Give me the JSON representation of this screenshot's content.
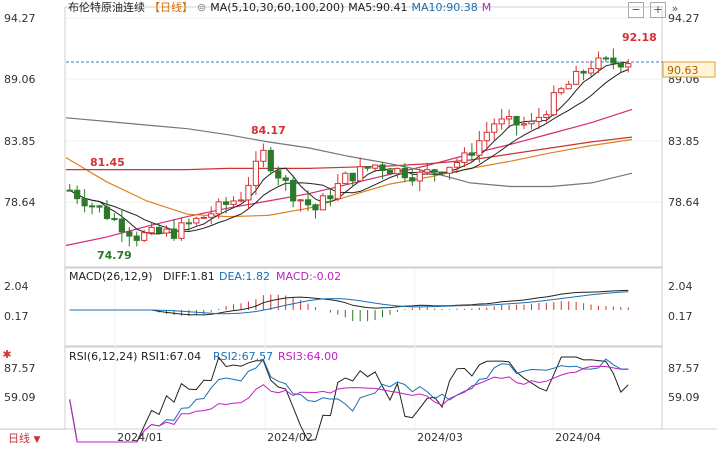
{
  "header": {
    "title": "布伦特原油连续",
    "period": "【日线】",
    "ma_label": "MA(5,10,30,60,100,200)",
    "ma5": "MA5:90.41",
    "ma10": "MA10:90.38",
    "ma_more": "M"
  },
  "price_axis": {
    "labels": [
      "94.27",
      "89.06",
      "83.85",
      "78.64"
    ]
  },
  "macd_axis": {
    "labels": [
      "2.04",
      "0.17"
    ]
  },
  "rsi_axis": {
    "labels": [
      "87.57",
      "59.09"
    ]
  },
  "current_price": "90.63",
  "annotations": {
    "high_1": "92.18",
    "high_2": "84.17",
    "low": "74.79",
    "level": "81.45"
  },
  "macd": {
    "label": "MACD(26,12,9)",
    "diff": "DIFF:1.81",
    "dea": "DEA:1.82",
    "macd": "MACD:-0.02"
  },
  "rsi": {
    "label": "RSI(6,12,24)",
    "rsi1": "RSI1:67.04",
    "rsi2": "RSI2:67.57",
    "rsi3": "RSI3:64.00"
  },
  "x_labels": [
    "2024/01",
    "2024/02",
    "2024/03",
    "2024/04"
  ],
  "tab_label": "日线",
  "colors": {
    "up": "#d83030",
    "down": "#2a7a2a",
    "ma5": "#222222",
    "ma10": "#222222",
    "ma30": "#d6297a",
    "ma60": "#e08020",
    "ma100": "#cc3333",
    "ma200": "#777777",
    "dash": "#3a7bbf"
  },
  "chart_data": [
    {
      "type": "candlestick",
      "title": "布伦特原油连续",
      "ylim": [
        74.0,
        94.5
      ],
      "yticks": [
        94.27,
        89.06,
        83.85,
        78.64
      ],
      "ma_lines": {
        "ma30": [
          75.2,
          75.9,
          76.8,
          77.6,
          78.3,
          78.9,
          79.5,
          80.3,
          81.1,
          81.9,
          82.8,
          83.6,
          84.5,
          85.4,
          86.5
        ],
        "ma60": [
          82.5,
          80.5,
          78.9,
          77.8,
          77.6,
          77.7,
          78.3,
          79.3,
          80.3,
          80.9,
          81.6,
          82.2,
          82.9,
          83.5,
          84.0
        ],
        "ma100": [
          81.5,
          81.5,
          81.5,
          81.5,
          81.6,
          81.6,
          81.6,
          81.7,
          81.8,
          82.0,
          82.3,
          82.8,
          83.3,
          83.8,
          84.2
        ],
        "ma200": [
          85.8,
          85.5,
          85.2,
          84.9,
          84.4,
          83.8,
          83.3,
          82.6,
          82.0,
          81.3,
          80.4,
          80.1,
          80.1,
          80.4,
          81.2
        ]
      },
      "annotations": [
        {
          "label": "92.18",
          "type": "high"
        },
        {
          "label": "84.17",
          "type": "high"
        },
        {
          "label": "74.79",
          "type": "low"
        },
        {
          "label": "81.45",
          "type": "level"
        }
      ]
    },
    {
      "type": "line",
      "title": "MACD(26,12,9)",
      "yticks": [
        2.04,
        0.17
      ]
    },
    {
      "type": "line",
      "title": "RSI(6,12,24)",
      "yticks": [
        87.57,
        59.09
      ]
    }
  ]
}
